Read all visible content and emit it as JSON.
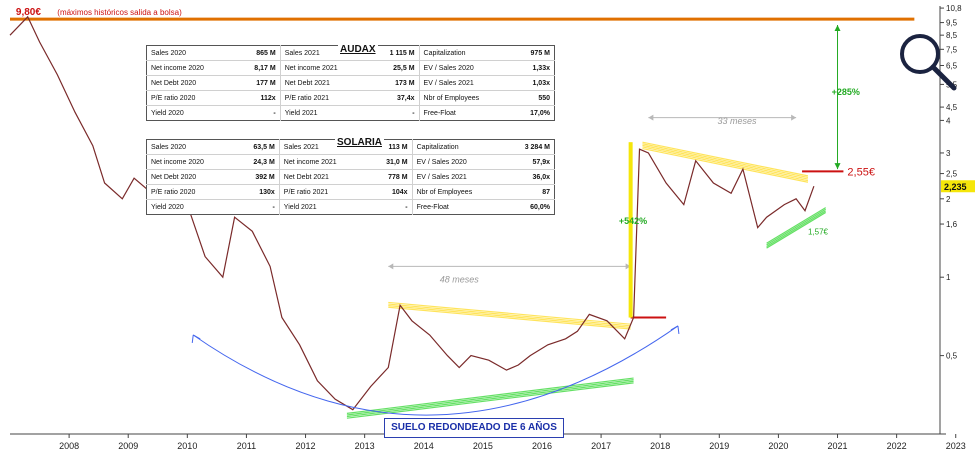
{
  "chart_data": {
    "type": "line",
    "y_scale": "log",
    "ylim": [
      0.25,
      11
    ],
    "xlim": [
      2007.5,
      2023.2
    ],
    "x_ticks": [
      "2008",
      "2009",
      "2010",
      "2011",
      "2012",
      "2013",
      "2014",
      "2015",
      "2016",
      "2017",
      "2018",
      "2019",
      "2020",
      "2021",
      "2022",
      "2023"
    ],
    "y_ticks": [
      "10,8",
      "9,5",
      "8,5",
      "7,5",
      "6,5",
      "5,5",
      "4,5",
      "4",
      "3",
      "2,5",
      "2",
      "1,6",
      "1",
      "0,5"
    ],
    "current_price_label": "2,235",
    "series": [
      {
        "x": [
          2007.5,
          2007.8,
          2008.0,
          2008.3,
          2008.6,
          2008.9,
          2009.1,
          2009.4,
          2009.6,
          2009.9,
          2010.2,
          2010.5,
          2010.8,
          2011.1,
          2011.3,
          2011.6,
          2011.9,
          2012.1,
          2012.4,
          2012.7,
          2013.0,
          2013.3,
          2013.6,
          2013.9,
          2014.1,
          2014.3,
          2014.6,
          2014.9,
          2015.1,
          2015.3,
          2015.6,
          2015.9,
          2016.1,
          2016.3,
          2016.6,
          2016.9,
          2017.1,
          2017.3,
          2017.6,
          2017.9,
          2018.05,
          2018.15,
          2018.3,
          2018.6,
          2018.9,
          2019.1,
          2019.4,
          2019.7,
          2019.9,
          2020.15,
          2020.3,
          2020.6,
          2020.8,
          2020.95,
          2021.1
        ],
        "y": [
          8.5,
          10.0,
          8.0,
          6.0,
          4.3,
          3.2,
          2.3,
          2.0,
          2.4,
          2.1,
          1.75,
          1.9,
          1.2,
          1.0,
          1.7,
          1.5,
          1.1,
          0.7,
          0.55,
          0.4,
          0.34,
          0.31,
          0.38,
          0.45,
          0.78,
          0.68,
          0.6,
          0.5,
          0.45,
          0.5,
          0.48,
          0.44,
          0.46,
          0.5,
          0.55,
          0.58,
          0.62,
          0.72,
          0.68,
          0.58,
          0.7,
          3.1,
          3.0,
          2.3,
          1.9,
          2.8,
          2.3,
          2.1,
          2.6,
          1.55,
          1.7,
          1.9,
          2.0,
          1.8,
          2.235
        ]
      }
    ],
    "annotations": [
      {
        "text": "9,80€",
        "x": 2007.6,
        "y": 9.8
      },
      {
        "text": "(máximos históricos salida a bolsa)",
        "x": 2008.3,
        "y": 9.8
      },
      {
        "text": "48 meses",
        "x": 2015.1,
        "y": 0.98
      },
      {
        "text": "33 meses",
        "x": 2019.8,
        "y": 3.8
      },
      {
        "text": "+542%",
        "x": 2017.8,
        "y": 1.6
      },
      {
        "text": "+285%",
        "x": 2021.4,
        "y": 5.0
      },
      {
        "text": "2,55€",
        "x": 2021.6,
        "y": 2.55
      },
      {
        "text": "1,57€",
        "x": 2021.0,
        "y": 1.5
      },
      {
        "text": "SUELO REDONDEADO DE 6 AÑOS",
        "x": 2015.3,
        "y": 0.27
      }
    ]
  },
  "audax": {
    "title": "AUDAX",
    "rows": [
      [
        "Sales 2020",
        "865 M",
        "Sales 2021",
        "1 115 M",
        "Capitalization",
        "975 M"
      ],
      [
        "Net income 2020",
        "8,17 M",
        "Net income 2021",
        "25,5 M",
        "EV / Sales 2020",
        "1,33x"
      ],
      [
        "Net Debt 2020",
        "177 M",
        "Net Debt 2021",
        "173 M",
        "EV / Sales 2021",
        "1,03x"
      ],
      [
        "P/E ratio 2020",
        "112x",
        "P/E ratio 2021",
        "37,4x",
        "Nbr of Employees",
        "550"
      ],
      [
        "Yield 2020",
        "-",
        "Yield 2021",
        "-",
        "Free-Float",
        "17,0%"
      ]
    ]
  },
  "solaria": {
    "title": "SOLARIA",
    "rows": [
      [
        "Sales 2020",
        "63,5 M",
        "Sales 2021",
        "113 M",
        "Capitalization",
        "3 284 M"
      ],
      [
        "Net income 2020",
        "24,3 M",
        "Net income 2021",
        "31,0 M",
        "EV / Sales 2020",
        "57,9x"
      ],
      [
        "Net Debt 2020",
        "392 M",
        "Net Debt 2021",
        "778 M",
        "EV / Sales 2021",
        "36,0x"
      ],
      [
        "P/E ratio 2020",
        "130x",
        "P/E ratio 2021",
        "104x",
        "Nbr of Employees",
        "87"
      ],
      [
        "Yield 2020",
        "-",
        "Yield 2021",
        "-",
        "Free-Float",
        "60,0%"
      ]
    ]
  },
  "colors": {
    "price": "#7a2a2a",
    "support": "#55dd55",
    "resistance": "#ffe24a",
    "arrow": "#4466ee",
    "accent": "#cc1111",
    "gain": "#22aa22",
    "hline": "#e07000"
  }
}
